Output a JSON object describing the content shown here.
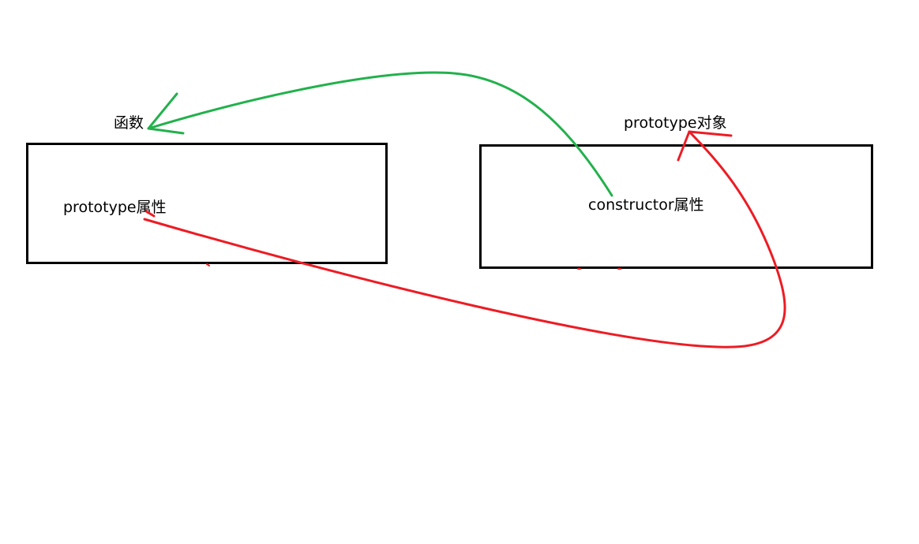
{
  "nodes": {
    "function_title": "函数",
    "function_prop": "prototype属性",
    "prototype_title": "prototype对象",
    "prototype_prop": "constructor属性"
  },
  "arrows": {
    "green": {
      "color": "#22b14c",
      "from": "constructor属性",
      "to": "函数"
    },
    "red": {
      "color": "#ed1c24",
      "from": "prototype属性",
      "to": "prototype对象"
    }
  }
}
